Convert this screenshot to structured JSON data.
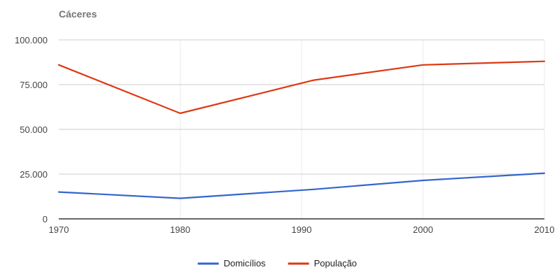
{
  "chart_data": {
    "type": "line",
    "title": "Cáceres",
    "xlabel": "",
    "ylabel": "",
    "x": [
      1970,
      1980,
      1990,
      2000,
      2010
    ],
    "x_tick_labels": [
      "1970",
      "1980",
      "1990",
      "2000",
      "2010"
    ],
    "ylim": [
      0,
      100000
    ],
    "y_ticks": [
      0,
      25000,
      50000,
      75000,
      100000
    ],
    "y_tick_labels": [
      "0",
      "25.000",
      "50.000",
      "75.000",
      "100.000"
    ],
    "grid": true,
    "legend_position": "bottom",
    "series": [
      {
        "name": "Domicílios",
        "color": "#3366cc",
        "points": [
          [
            1970,
            15000
          ],
          [
            1980,
            11500
          ],
          [
            1991,
            16500
          ],
          [
            2000,
            21500
          ],
          [
            2010,
            25500
          ]
        ]
      },
      {
        "name": "População",
        "color": "#dc3912",
        "points": [
          [
            1970,
            86000
          ],
          [
            1980,
            59000
          ],
          [
            1991,
            77500
          ],
          [
            2000,
            86000
          ],
          [
            2010,
            88000
          ]
        ]
      }
    ]
  },
  "colors": {
    "title": "#757575",
    "tick_label": "#444444",
    "legend_label": "#222222",
    "gridline": "#cccccc",
    "vertical_gridline": "#ebebeb",
    "baseline": "#333333"
  }
}
